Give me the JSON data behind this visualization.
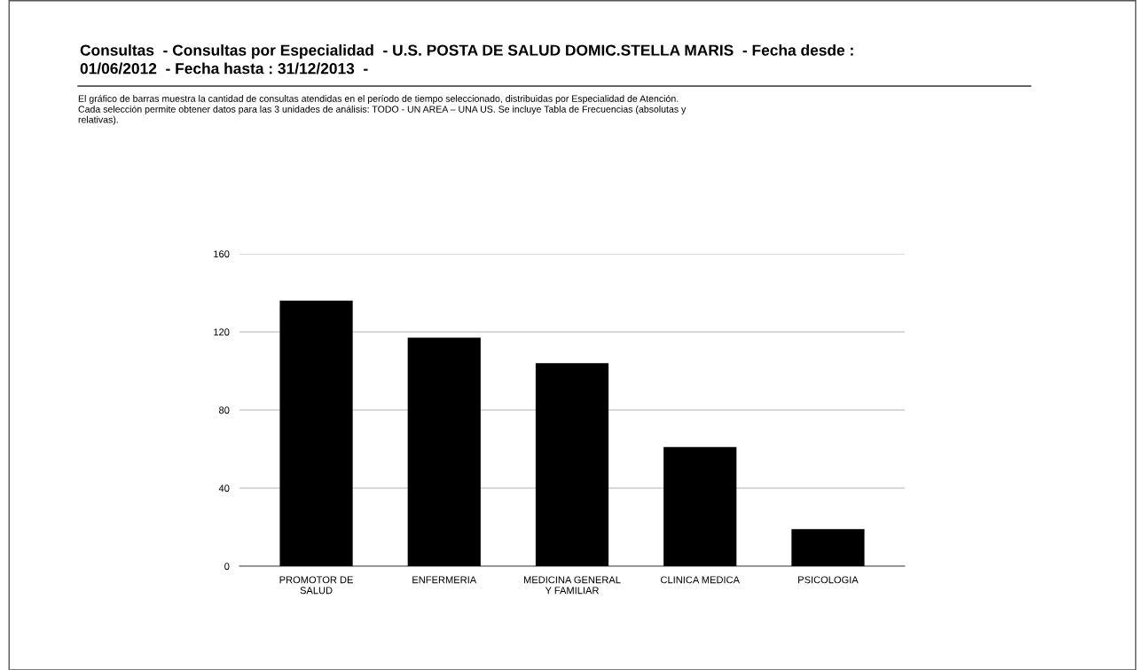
{
  "chart_data": {
    "type": "bar",
    "title": "Consultas  - Consultas por Especialidad  - U.S. POSTA DE SALUD DOMIC.STELLA MARIS  - Fecha desde :\n01/06/2012  - Fecha hasta : 31/12/2013  -",
    "subtitle": "El gráfico de barras muestra la cantidad de consultas atendidas en el período de tiempo seleccionado, distribuidas por Especialidad de Atención.\nCada selección permite obtener datos para las 3 unidades de análisis: TODO - UN AREA – UNA US. Se incluye Tabla de Frecuencias (absolutas y\nrelativas).",
    "categories": [
      "PROMOTOR DE\nSALUD",
      "ENFERMERIA",
      "MEDICINA GENERAL\nY FAMILIAR",
      "CLINICA MEDICA",
      "PSICOLOGIA"
    ],
    "values": [
      136,
      117,
      104,
      61,
      19
    ],
    "color": "#000000",
    "ylim": [
      0,
      160
    ],
    "yticks": [
      0,
      40,
      80,
      120,
      160
    ],
    "grid": "y",
    "legend": false
  }
}
